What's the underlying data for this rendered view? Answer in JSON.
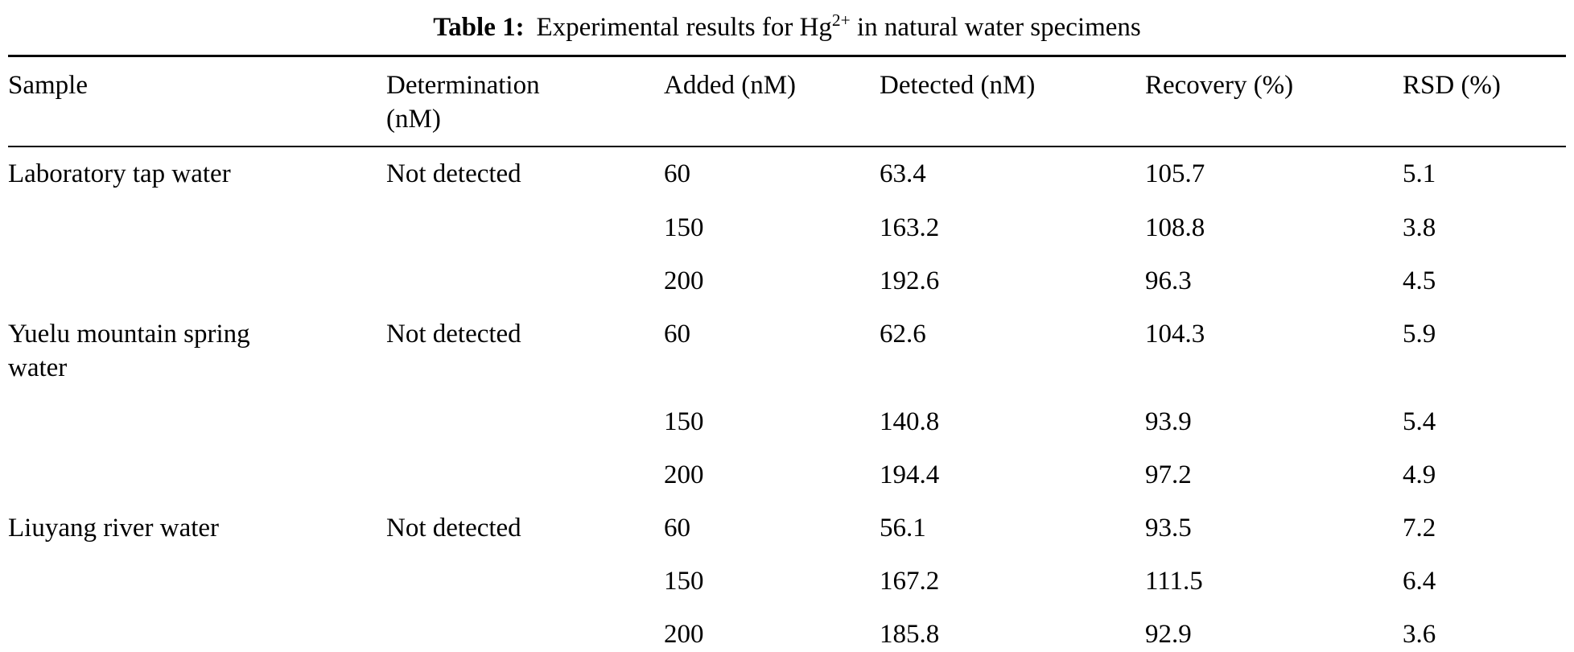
{
  "caption": {
    "label": "Table 1:",
    "before_sup": "Experimental results for Hg",
    "sup": "2+",
    "after_sup": " in natural water specimens"
  },
  "table": {
    "headers": [
      "Sample",
      "Determination\n(nM)",
      "Added (nM)",
      "Detected (nM)",
      "Recovery (%)",
      "RSD (%)"
    ],
    "rows": [
      [
        "Laboratory tap water",
        "Not detected",
        "60",
        "63.4",
        "105.7",
        "5.1"
      ],
      [
        "",
        "",
        "150",
        "163.2",
        "108.8",
        "3.8"
      ],
      [
        "",
        "",
        "200",
        "192.6",
        "96.3",
        "4.5"
      ],
      [
        "Yuelu mountain spring\nwater",
        "Not detected",
        "60",
        "62.6",
        "104.3",
        "5.9"
      ],
      [
        "",
        "",
        "150",
        "140.8",
        "93.9",
        "5.4"
      ],
      [
        "",
        "",
        "200",
        "194.4",
        "97.2",
        "4.9"
      ],
      [
        "Liuyang river water",
        "Not detected",
        "60",
        "56.1",
        "93.5",
        "7.2"
      ],
      [
        "",
        "",
        "150",
        "167.2",
        "111.5",
        "6.4"
      ],
      [
        "",
        "",
        "200",
        "185.8",
        "92.9",
        "3.6"
      ]
    ]
  }
}
